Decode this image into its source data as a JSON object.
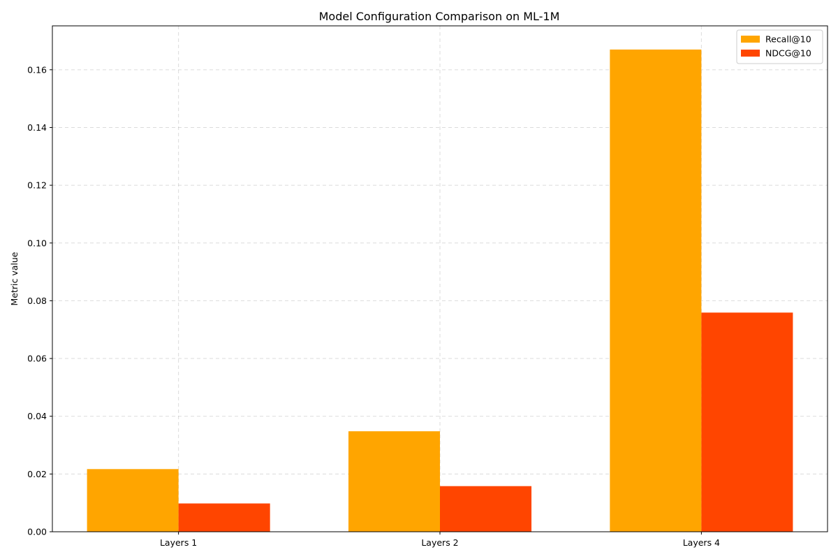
{
  "chart_data": {
    "type": "bar",
    "title": "Model Configuration Comparison on ML-1M",
    "xlabel": "",
    "ylabel": "Metric value",
    "categories": [
      "Layers 1",
      "Layers 2",
      "Layers 4"
    ],
    "series": [
      {
        "name": "Recall@10",
        "color": "#FFA500",
        "values": [
          0.0217,
          0.0348,
          0.167
        ]
      },
      {
        "name": "NDCG@10",
        "color": "#FF4500",
        "values": [
          0.0098,
          0.0158,
          0.0759
        ]
      }
    ],
    "ylim": [
      0,
      0.1752
    ],
    "yticks": [
      "0.00",
      "0.02",
      "0.04",
      "0.06",
      "0.08",
      "0.10",
      "0.12",
      "0.14",
      "0.16"
    ],
    "grid": true,
    "legend_position": "top-right"
  }
}
